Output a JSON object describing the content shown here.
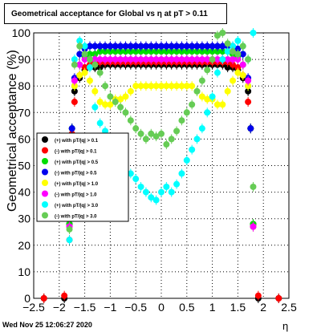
{
  "canvas": {
    "title": "Geometrical acceptance for Global vs   η at pT > 0.11",
    "timestamp": "Wed Nov 25 12:06:27 2020"
  },
  "chart_data": {
    "type": "scatter",
    "title": "Geometrical acceptance for Global vs   η at pT > 0.11",
    "xlabel": "η",
    "ylabel": "Geometrical acceptance (%)",
    "xlim": [
      -2.5,
      2.5
    ],
    "ylim": [
      0,
      100
    ],
    "grid": true,
    "legend_position": "left-middle",
    "x_ticks": [
      -2.5,
      -2,
      -1.5,
      -1,
      -0.5,
      0,
      0.5,
      1,
      1.5,
      2,
      2.5
    ],
    "x_tick_labels": [
      "−2.5",
      "−2",
      "−1.5",
      "−1",
      "−0.5",
      "0",
      "0.5",
      "1",
      "1.5",
      "2",
      "2.5"
    ],
    "y_ticks": [
      0,
      10,
      20,
      30,
      40,
      50,
      60,
      70,
      80,
      90,
      100
    ],
    "y_tick_labels": [
      "0",
      "10",
      "20",
      "30",
      "40",
      "50",
      "60",
      "70",
      "80",
      "90",
      "100"
    ],
    "series": [
      {
        "name": "(+) with pT/|q| > 0.1",
        "color": "#000000",
        "x": [
          -2.3,
          -1.9,
          -1.8,
          -1.75,
          -1.7,
          -1.6,
          -1.5,
          -1.4,
          -1.3,
          -1.2,
          -1.1,
          -1.0,
          -0.9,
          -0.8,
          -0.7,
          -0.6,
          -0.5,
          -0.4,
          -0.3,
          -0.2,
          -0.1,
          0,
          0.1,
          0.2,
          0.3,
          0.4,
          0.5,
          0.6,
          0.7,
          0.8,
          0.9,
          1.0,
          1.1,
          1.2,
          1.3,
          1.4,
          1.5,
          1.6,
          1.7,
          1.75,
          1.8,
          1.9,
          2.3
        ],
        "y": [
          0,
          0,
          28,
          64,
          78,
          83,
          86,
          87,
          87,
          87,
          88,
          88,
          88,
          88,
          88,
          88,
          88,
          88,
          88,
          88,
          88,
          88,
          88,
          88,
          88,
          88,
          88,
          88,
          88,
          88,
          88,
          88,
          88,
          88,
          87,
          87,
          86,
          83,
          78,
          64,
          28,
          0,
          0
        ]
      },
      {
        "name": "(-) with pT/|q| > 0.1",
        "color": "#ff0000",
        "x": [
          -2.3,
          -1.9,
          -1.8,
          -1.75,
          -1.7,
          -1.6,
          -1.5,
          -1.4,
          -1.3,
          -1.2,
          -1.1,
          -1.0,
          -0.9,
          -0.8,
          -0.7,
          -0.6,
          -0.5,
          -0.4,
          -0.3,
          -0.2,
          -0.1,
          0,
          0.1,
          0.2,
          0.3,
          0.4,
          0.5,
          0.6,
          0.7,
          0.8,
          0.9,
          1.0,
          1.1,
          1.2,
          1.3,
          1.4,
          1.5,
          1.6,
          1.7,
          1.75,
          1.8,
          1.9,
          2.3
        ],
        "y": [
          0,
          1,
          22,
          62,
          74,
          84,
          87,
          88,
          89,
          89,
          89,
          89,
          89,
          89,
          89,
          89,
          89,
          89,
          89,
          89,
          89,
          89,
          89,
          89,
          89,
          89,
          89,
          89,
          89,
          89,
          89,
          89,
          89,
          89,
          89,
          88,
          87,
          84,
          74,
          64,
          27,
          1,
          0
        ]
      },
      {
        "name": "(+) with pT/|q| > 0.5",
        "color": "#00dd00",
        "x": [
          -1.8,
          -1.75,
          -1.7,
          -1.6,
          -1.5,
          -1.4,
          -1.3,
          -1.2,
          -1.1,
          -1.0,
          -0.9,
          -0.8,
          -0.7,
          -0.6,
          -0.5,
          -0.4,
          -0.3,
          -0.2,
          -0.1,
          0,
          0.1,
          0.2,
          0.3,
          0.4,
          0.5,
          0.6,
          0.7,
          0.8,
          0.9,
          1.0,
          1.1,
          1.2,
          1.3,
          1.4,
          1.5,
          1.6,
          1.7,
          1.75,
          1.8
        ],
        "y": [
          28,
          64,
          80,
          88,
          91,
          92,
          92,
          93,
          93,
          93,
          93,
          93,
          93,
          93,
          93,
          93,
          93,
          93,
          93,
          93,
          93,
          93,
          93,
          93,
          93,
          93,
          93,
          93,
          93,
          93,
          93,
          93,
          93,
          92,
          91,
          88,
          80,
          64,
          28
        ]
      },
      {
        "name": "(-) with pT/|q| > 0.5",
        "color": "#0000ee",
        "x": [
          -1.8,
          -1.75,
          -1.7,
          -1.6,
          -1.5,
          -1.4,
          -1.3,
          -1.2,
          -1.1,
          -1.0,
          -0.9,
          -0.8,
          -0.7,
          -0.6,
          -0.5,
          -0.4,
          -0.3,
          -0.2,
          -0.1,
          0,
          0.1,
          0.2,
          0.3,
          0.4,
          0.5,
          0.6,
          0.7,
          0.8,
          0.9,
          1.0,
          1.1,
          1.2,
          1.3,
          1.4,
          1.5,
          1.6,
          1.7,
          1.75,
          1.8
        ],
        "y": [
          27,
          64,
          83,
          92,
          94,
          95,
          95,
          95,
          95,
          95,
          95,
          95,
          95,
          95,
          95,
          95,
          95,
          95,
          95,
          95,
          95,
          95,
          95,
          95,
          95,
          95,
          95,
          95,
          95,
          95,
          95,
          95,
          95,
          95,
          94,
          92,
          83,
          64,
          27
        ]
      },
      {
        "name": "(+) with pT/|q| > 1.0",
        "color": "#ffff00",
        "x": [
          -1.8,
          -1.7,
          -1.6,
          -1.5,
          -1.4,
          -1.3,
          -1.2,
          -1.1,
          -1.0,
          -0.9,
          -0.8,
          -0.7,
          -0.6,
          -0.5,
          -0.4,
          -0.3,
          -0.2,
          -0.1,
          0,
          0.1,
          0.2,
          0.3,
          0.4,
          0.5,
          0.6,
          0.7,
          0.8,
          0.9,
          1.0,
          1.1,
          1.2,
          1.3,
          1.4,
          1.5,
          1.6,
          1.7,
          1.8
        ],
        "y": [
          27,
          80,
          84,
          85,
          82,
          78,
          74,
          73,
          73,
          75,
          75,
          76,
          78,
          80,
          80,
          80,
          80,
          80,
          80,
          80,
          80,
          80,
          80,
          80,
          80,
          78,
          76,
          75,
          75,
          73,
          73,
          78,
          82,
          85,
          84,
          80,
          27
        ]
      },
      {
        "name": "(-) with pT/|q| > 1.0",
        "color": "#ff00ff",
        "x": [
          -1.8,
          -1.7,
          -1.6,
          -1.5,
          -1.4,
          -1.3,
          -1.2,
          -1.1,
          -1.0,
          -0.9,
          -0.8,
          -0.7,
          -0.6,
          -0.5,
          -0.4,
          -0.3,
          -0.2,
          -0.1,
          0,
          0.1,
          0.2,
          0.3,
          0.4,
          0.5,
          0.6,
          0.7,
          0.8,
          0.9,
          1.0,
          1.1,
          1.2,
          1.3,
          1.4,
          1.5,
          1.6,
          1.7,
          1.8
        ],
        "y": [
          27,
          82,
          88,
          90,
          90,
          90,
          90,
          90,
          90,
          90,
          90,
          90,
          90,
          90,
          90,
          90,
          90,
          90,
          90,
          90,
          90,
          90,
          90,
          90,
          90,
          90,
          90,
          90,
          90,
          90,
          90,
          90,
          90,
          90,
          88,
          82,
          27
        ]
      },
      {
        "name": "(+) with pT/|q| > 3.0",
        "color": "#00ffff",
        "x": [
          -1.8,
          -1.7,
          -1.6,
          -1.5,
          -1.4,
          -1.3,
          -1.2,
          -1.1,
          -1.0,
          -0.9,
          -0.8,
          -0.7,
          -0.6,
          -0.5,
          -0.4,
          -0.3,
          -0.2,
          -0.1,
          0,
          0.1,
          0.2,
          0.3,
          0.4,
          0.5,
          0.6,
          0.7,
          0.8,
          0.9,
          1.0,
          1.1,
          1.2,
          1.3,
          1.4,
          1.5,
          1.6,
          1.7,
          1.8
        ],
        "y": [
          22,
          90,
          97,
          95,
          87,
          72,
          66,
          63,
          60,
          58,
          56,
          52,
          47,
          45,
          42,
          40,
          38,
          37,
          40,
          42,
          40,
          43,
          47,
          52,
          56,
          60,
          64,
          70,
          76,
          85,
          90,
          93,
          95,
          97,
          95,
          90,
          100
        ]
      },
      {
        "name": "(-) with pT/|q| > 3.0",
        "color": "#66cc55",
        "x": [
          -1.8,
          -1.7,
          -1.6,
          -1.5,
          -1.4,
          -1.3,
          -1.2,
          -1.1,
          -1.0,
          -0.9,
          -0.8,
          -0.7,
          -0.6,
          -0.5,
          -0.4,
          -0.3,
          -0.2,
          -0.1,
          0,
          0.1,
          0.2,
          0.3,
          0.4,
          0.5,
          0.6,
          0.7,
          0.8,
          0.9,
          1.0,
          1.1,
          1.2,
          1.3,
          1.4,
          1.5,
          1.6,
          1.7,
          1.8
        ],
        "y": [
          26,
          88,
          95,
          92,
          90,
          88,
          85,
          80,
          76,
          74,
          72,
          70,
          67,
          64,
          62,
          60,
          62,
          61,
          62,
          58,
          60,
          63,
          67,
          70,
          73,
          78,
          82,
          86,
          90,
          99,
          100,
          96,
          93,
          92,
          95,
          90,
          42
        ]
      }
    ]
  }
}
